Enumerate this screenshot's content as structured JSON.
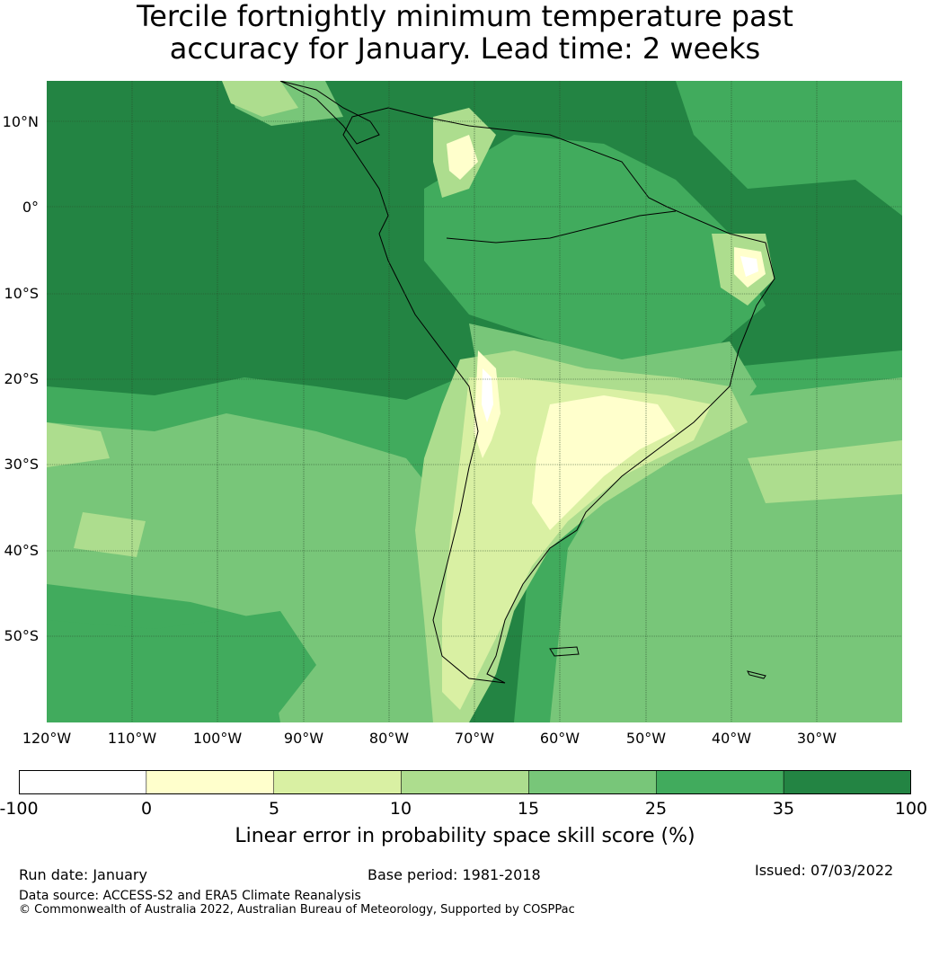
{
  "title": {
    "line1": "Tercile fortnightly minimum temperature past",
    "line2": "accuracy for January. Lead time: 2 weeks"
  },
  "map": {
    "lat_labels": [
      "10°N",
      "0°",
      "10°S",
      "20°S",
      "30°S",
      "40°S",
      "50°S"
    ],
    "lon_labels": [
      "120°W",
      "110°W",
      "100°W",
      "90°W",
      "80°W",
      "70°W",
      "60°W",
      "50°W",
      "40°W",
      "30°W"
    ],
    "background_skill_color": "#228a44",
    "graticule_color": "#2a4a2a"
  },
  "colorbar": {
    "ticks": [
      "-100",
      "0",
      "5",
      "10",
      "15",
      "25",
      "35",
      "100"
    ],
    "colors": [
      "#ffffff",
      "#ffffcc",
      "#d9f0a3",
      "#addd8e",
      "#78c679",
      "#41ab5d",
      "#238443"
    ],
    "label": "Linear error in probability space skill score (%)"
  },
  "footer": {
    "run_date": "Run date: January",
    "base_period": "Base period: 1981-2018",
    "issued": "Issued: 07/03/2022",
    "data_source": "Data source: ACCESS-S2 and ERA5 Climate Reanalysis",
    "copyright": "© Commonwealth of Australia 2022, Australian Bureau of Meteorology, Supported by COSPPac"
  }
}
